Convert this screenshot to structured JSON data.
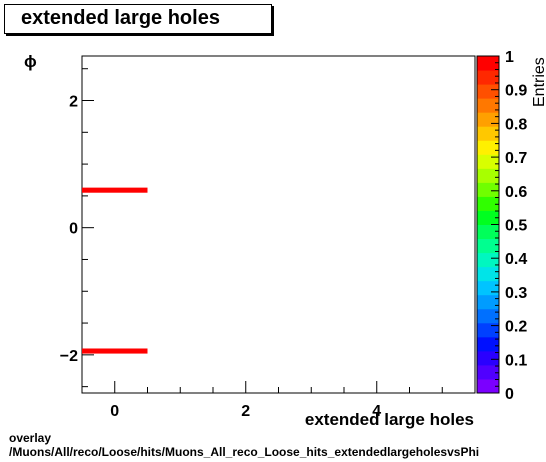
{
  "title": "extended large holes",
  "footer": {
    "line1": "overlay",
    "line2": "/Muons/All/reco/Loose/hits/Muons_All_reco_Loose_hits_extendedlargeholesvsPhi"
  },
  "chart_data": {
    "type": "heatmap",
    "title": "extended large holes",
    "xlabel": "extended large holes",
    "ylabel": "ϕ",
    "zlabel": "Entries",
    "xlim": [
      -0.5,
      5.5
    ],
    "ylim": [
      -2.6,
      2.7
    ],
    "x_ticks": [
      0,
      2,
      4
    ],
    "y_ticks": [
      -2,
      0,
      2
    ],
    "x_tick_labels": [
      "0",
      "2",
      "4"
    ],
    "y_tick_labels": [
      "−2",
      "0",
      "2"
    ],
    "zlim": [
      0,
      1
    ],
    "z_ticks": [
      0,
      0.1,
      0.2,
      0.3,
      0.4,
      0.5,
      0.6,
      0.7,
      0.8,
      0.9,
      1
    ],
    "z_tick_labels": [
      "0",
      "0.1",
      "0.2",
      "0.3",
      "0.4",
      "0.5",
      "0.6",
      "0.7",
      "0.8",
      "0.9",
      "1"
    ],
    "cells": [
      {
        "x0": -0.5,
        "x1": 0.5,
        "y0": 0.55,
        "y1": 0.63,
        "value": 1
      },
      {
        "x0": -0.5,
        "x1": 0.5,
        "y0": -1.98,
        "y1": -1.9,
        "value": 1
      }
    ]
  }
}
